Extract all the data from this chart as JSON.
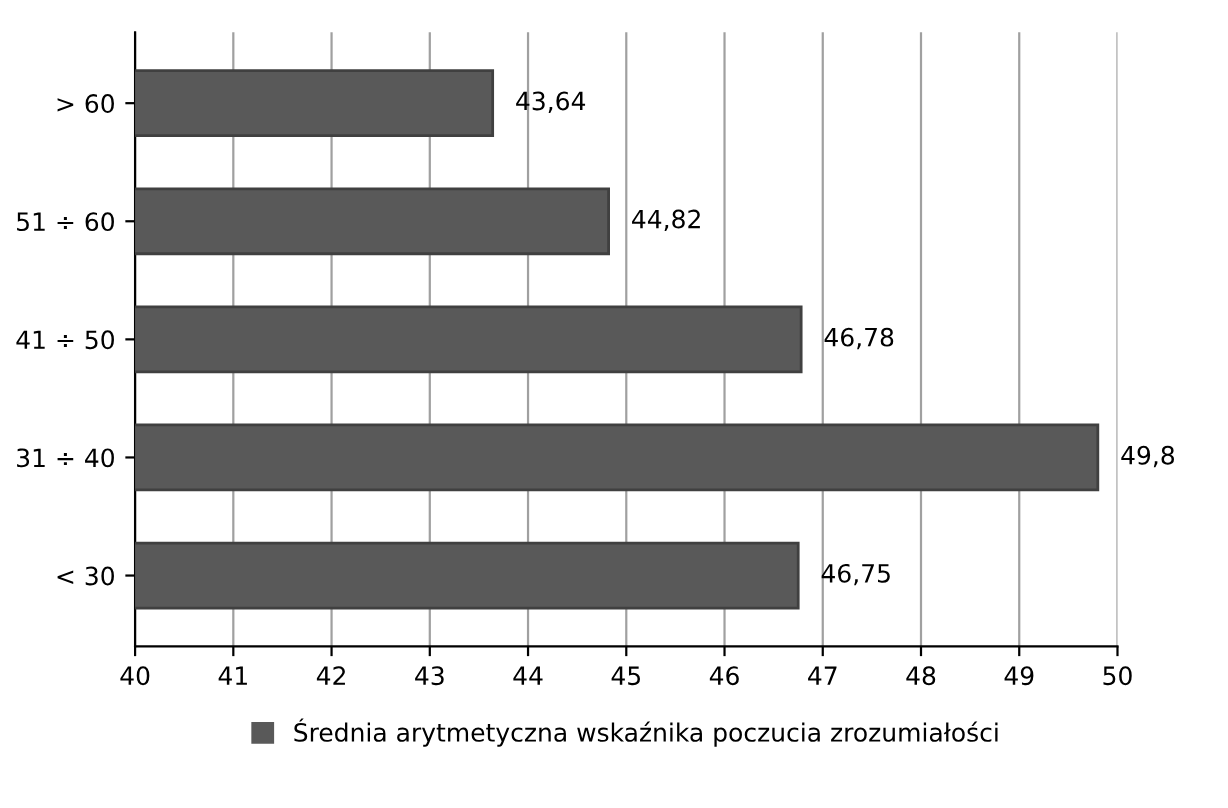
{
  "chart_data": {
    "type": "bar",
    "orientation": "horizontal",
    "categories": [
      "> 60",
      "51 ÷ 60",
      "41 ÷ 50",
      "31 ÷ 40",
      "< 30"
    ],
    "series": [
      {
        "name": "Średnia arytmetyczna wskaźnika poczucia zrozumiałości",
        "color": "#595959",
        "values": [
          43.64,
          44.82,
          46.78,
          49.8,
          46.75
        ],
        "value_labels": [
          "43,64",
          "44,82",
          "46,78",
          "49,8",
          "46,75"
        ]
      }
    ],
    "xlim": [
      40,
      50
    ],
    "xticks": [
      40,
      41,
      42,
      43,
      44,
      45,
      46,
      47,
      48,
      49,
      50
    ],
    "grid": "x",
    "legend": "bottom"
  }
}
